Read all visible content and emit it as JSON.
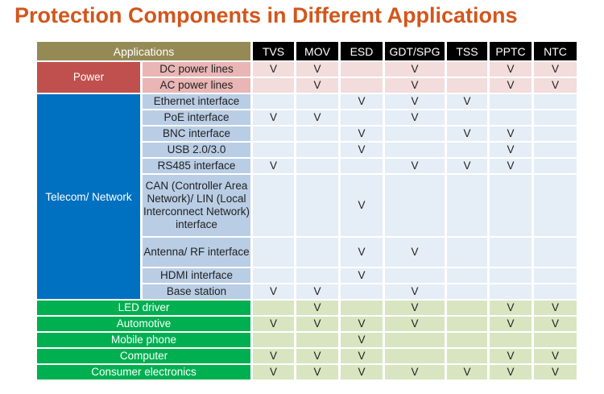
{
  "title": "Protection Components in Different Applications",
  "header": {
    "applications": "Applications",
    "columns": [
      "TVS",
      "MOV",
      "ESD",
      "GDT/SPG",
      "TSS",
      "PPTC",
      "NTC"
    ]
  },
  "mark": "V",
  "colors": {
    "title": "#d2561c",
    "applications_header": "#958a55",
    "power": "#c0504d",
    "telecom": "#0070c0",
    "green": "#00b050"
  },
  "groups": [
    {
      "category": "Power",
      "style": "power",
      "rows": [
        {
          "label": "DC power lines",
          "marks": [
            1,
            1,
            0,
            1,
            0,
            1,
            1
          ]
        },
        {
          "label": "AC power lines",
          "marks": [
            0,
            1,
            0,
            1,
            0,
            1,
            1
          ]
        }
      ]
    },
    {
      "category": "Telecom/ Network",
      "style": "telecom",
      "rows": [
        {
          "label": "Ethernet interface",
          "marks": [
            0,
            0,
            1,
            1,
            1,
            0,
            0
          ]
        },
        {
          "label": "PoE interface",
          "marks": [
            1,
            1,
            0,
            1,
            0,
            0,
            0
          ]
        },
        {
          "label": "BNC interface",
          "marks": [
            0,
            0,
            1,
            0,
            1,
            1,
            0
          ]
        },
        {
          "label": "USB 2.0/3.0",
          "marks": [
            0,
            0,
            1,
            0,
            0,
            1,
            0
          ]
        },
        {
          "label": "RS485 interface",
          "marks": [
            1,
            0,
            0,
            1,
            1,
            1,
            0
          ]
        },
        {
          "label": "CAN (Controller Area Network)/ LIN (Local Interconnect Network) interface",
          "marks": [
            0,
            0,
            1,
            0,
            0,
            0,
            0
          ]
        },
        {
          "label": "Antenna/ RF interface",
          "marks": [
            0,
            0,
            1,
            1,
            0,
            0,
            0
          ]
        },
        {
          "label": "HDMI interface",
          "marks": [
            0,
            0,
            1,
            0,
            0,
            0,
            0
          ]
        },
        {
          "label": "Base station",
          "marks": [
            1,
            1,
            0,
            1,
            0,
            0,
            0
          ]
        }
      ]
    },
    {
      "category": null,
      "style": "green",
      "rows": [
        {
          "label": "LED driver",
          "marks": [
            0,
            1,
            0,
            1,
            0,
            1,
            1
          ]
        },
        {
          "label": "Automotive",
          "marks": [
            1,
            1,
            1,
            1,
            0,
            1,
            1
          ]
        },
        {
          "label": "Mobile phone",
          "marks": [
            0,
            0,
            1,
            0,
            0,
            0,
            0
          ]
        },
        {
          "label": "Computer",
          "marks": [
            1,
            1,
            1,
            0,
            0,
            1,
            1
          ]
        },
        {
          "label": "Consumer electronics",
          "marks": [
            1,
            1,
            1,
            1,
            1,
            1,
            1
          ]
        }
      ]
    }
  ]
}
